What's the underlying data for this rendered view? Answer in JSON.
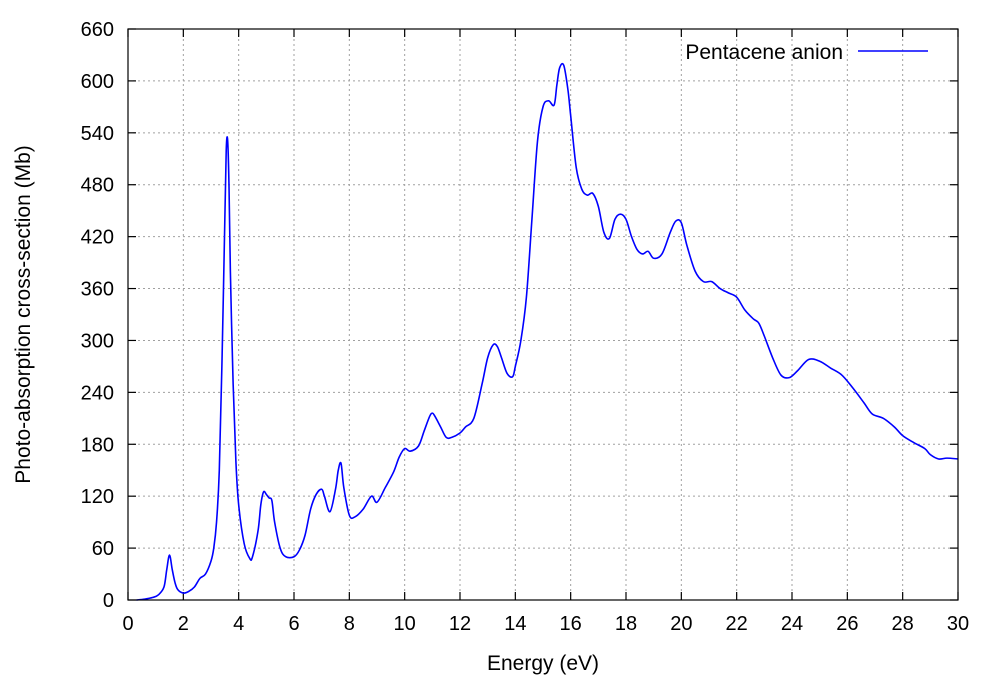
{
  "chart_data": {
    "type": "line",
    "title": "",
    "xlabel": "Energy (eV)",
    "ylabel": "Photo-absorption cross-section (Mb)",
    "xlim": [
      0,
      30
    ],
    "ylim": [
      0,
      660
    ],
    "xticks": [
      0,
      2,
      4,
      6,
      8,
      10,
      12,
      14,
      16,
      18,
      20,
      22,
      24,
      26,
      28,
      30
    ],
    "yticks": [
      0,
      60,
      120,
      180,
      240,
      300,
      360,
      420,
      480,
      540,
      600,
      660
    ],
    "grid": true,
    "legend_position": "top-right",
    "series": [
      {
        "name": "Pentacene anion",
        "color": "#0000ff",
        "x": [
          0.3,
          0.6,
          0.9,
          1.1,
          1.3,
          1.4,
          1.5,
          1.6,
          1.7,
          1.8,
          2.0,
          2.2,
          2.4,
          2.6,
          2.8,
          3.0,
          3.1,
          3.2,
          3.3,
          3.4,
          3.5,
          3.55,
          3.6,
          3.65,
          3.7,
          3.8,
          3.9,
          4.0,
          4.2,
          4.4,
          4.5,
          4.7,
          4.8,
          4.9,
          5.0,
          5.1,
          5.2,
          5.3,
          5.5,
          5.7,
          6.0,
          6.2,
          6.4,
          6.6,
          6.8,
          7.0,
          7.1,
          7.3,
          7.5,
          7.6,
          7.7,
          7.8,
          8.0,
          8.2,
          8.5,
          8.8,
          9.0,
          9.3,
          9.6,
          9.8,
          10.0,
          10.2,
          10.5,
          10.7,
          10.9,
          11.0,
          11.1,
          11.3,
          11.5,
          11.7,
          12.0,
          12.2,
          12.5,
          12.8,
          13.0,
          13.2,
          13.35,
          13.5,
          13.7,
          13.9,
          14.0,
          14.2,
          14.4,
          14.6,
          14.8,
          15.0,
          15.2,
          15.4,
          15.5,
          15.6,
          15.75,
          15.9,
          16.0,
          16.2,
          16.4,
          16.6,
          16.8,
          17.0,
          17.2,
          17.4,
          17.6,
          17.8,
          18.0,
          18.2,
          18.4,
          18.6,
          18.8,
          19.0,
          19.3,
          19.6,
          19.8,
          20.0,
          20.2,
          20.5,
          20.8,
          21.1,
          21.4,
          21.7,
          22.0,
          22.3,
          22.6,
          22.8,
          23.0,
          23.3,
          23.6,
          23.9,
          24.2,
          24.6,
          25.0,
          25.4,
          25.8,
          26.2,
          26.6,
          26.9,
          27.3,
          27.7,
          28.0,
          28.4,
          28.8,
          29.0,
          29.3,
          29.6,
          30.0
        ],
        "y": [
          0,
          1,
          3,
          6,
          15,
          35,
          52,
          35,
          20,
          12,
          8,
          10,
          15,
          25,
          30,
          45,
          60,
          90,
          150,
          280,
          440,
          520,
          532,
          480,
          380,
          250,
          160,
          110,
          65,
          48,
          50,
          80,
          110,
          125,
          122,
          118,
          115,
          90,
          60,
          50,
          50,
          58,
          75,
          105,
          122,
          128,
          120,
          102,
          128,
          150,
          158,
          130,
          98,
          96,
          105,
          120,
          113,
          130,
          148,
          165,
          175,
          172,
          178,
          195,
          212,
          216,
          212,
          200,
          188,
          188,
          193,
          200,
          210,
          250,
          280,
          295,
          293,
          280,
          262,
          258,
          270,
          300,
          350,
          440,
          530,
          570,
          577,
          572,
          595,
          615,
          618,
          590,
          560,
          500,
          475,
          468,
          470,
          455,
          425,
          418,
          440,
          446,
          440,
          420,
          405,
          400,
          403,
          395,
          400,
          425,
          438,
          436,
          410,
          380,
          368,
          368,
          360,
          355,
          350,
          335,
          325,
          320,
          305,
          280,
          260,
          257,
          265,
          278,
          276,
          268,
          260,
          245,
          228,
          215,
          210,
          200,
          190,
          182,
          175,
          168,
          163,
          164,
          163
        ]
      }
    ]
  }
}
